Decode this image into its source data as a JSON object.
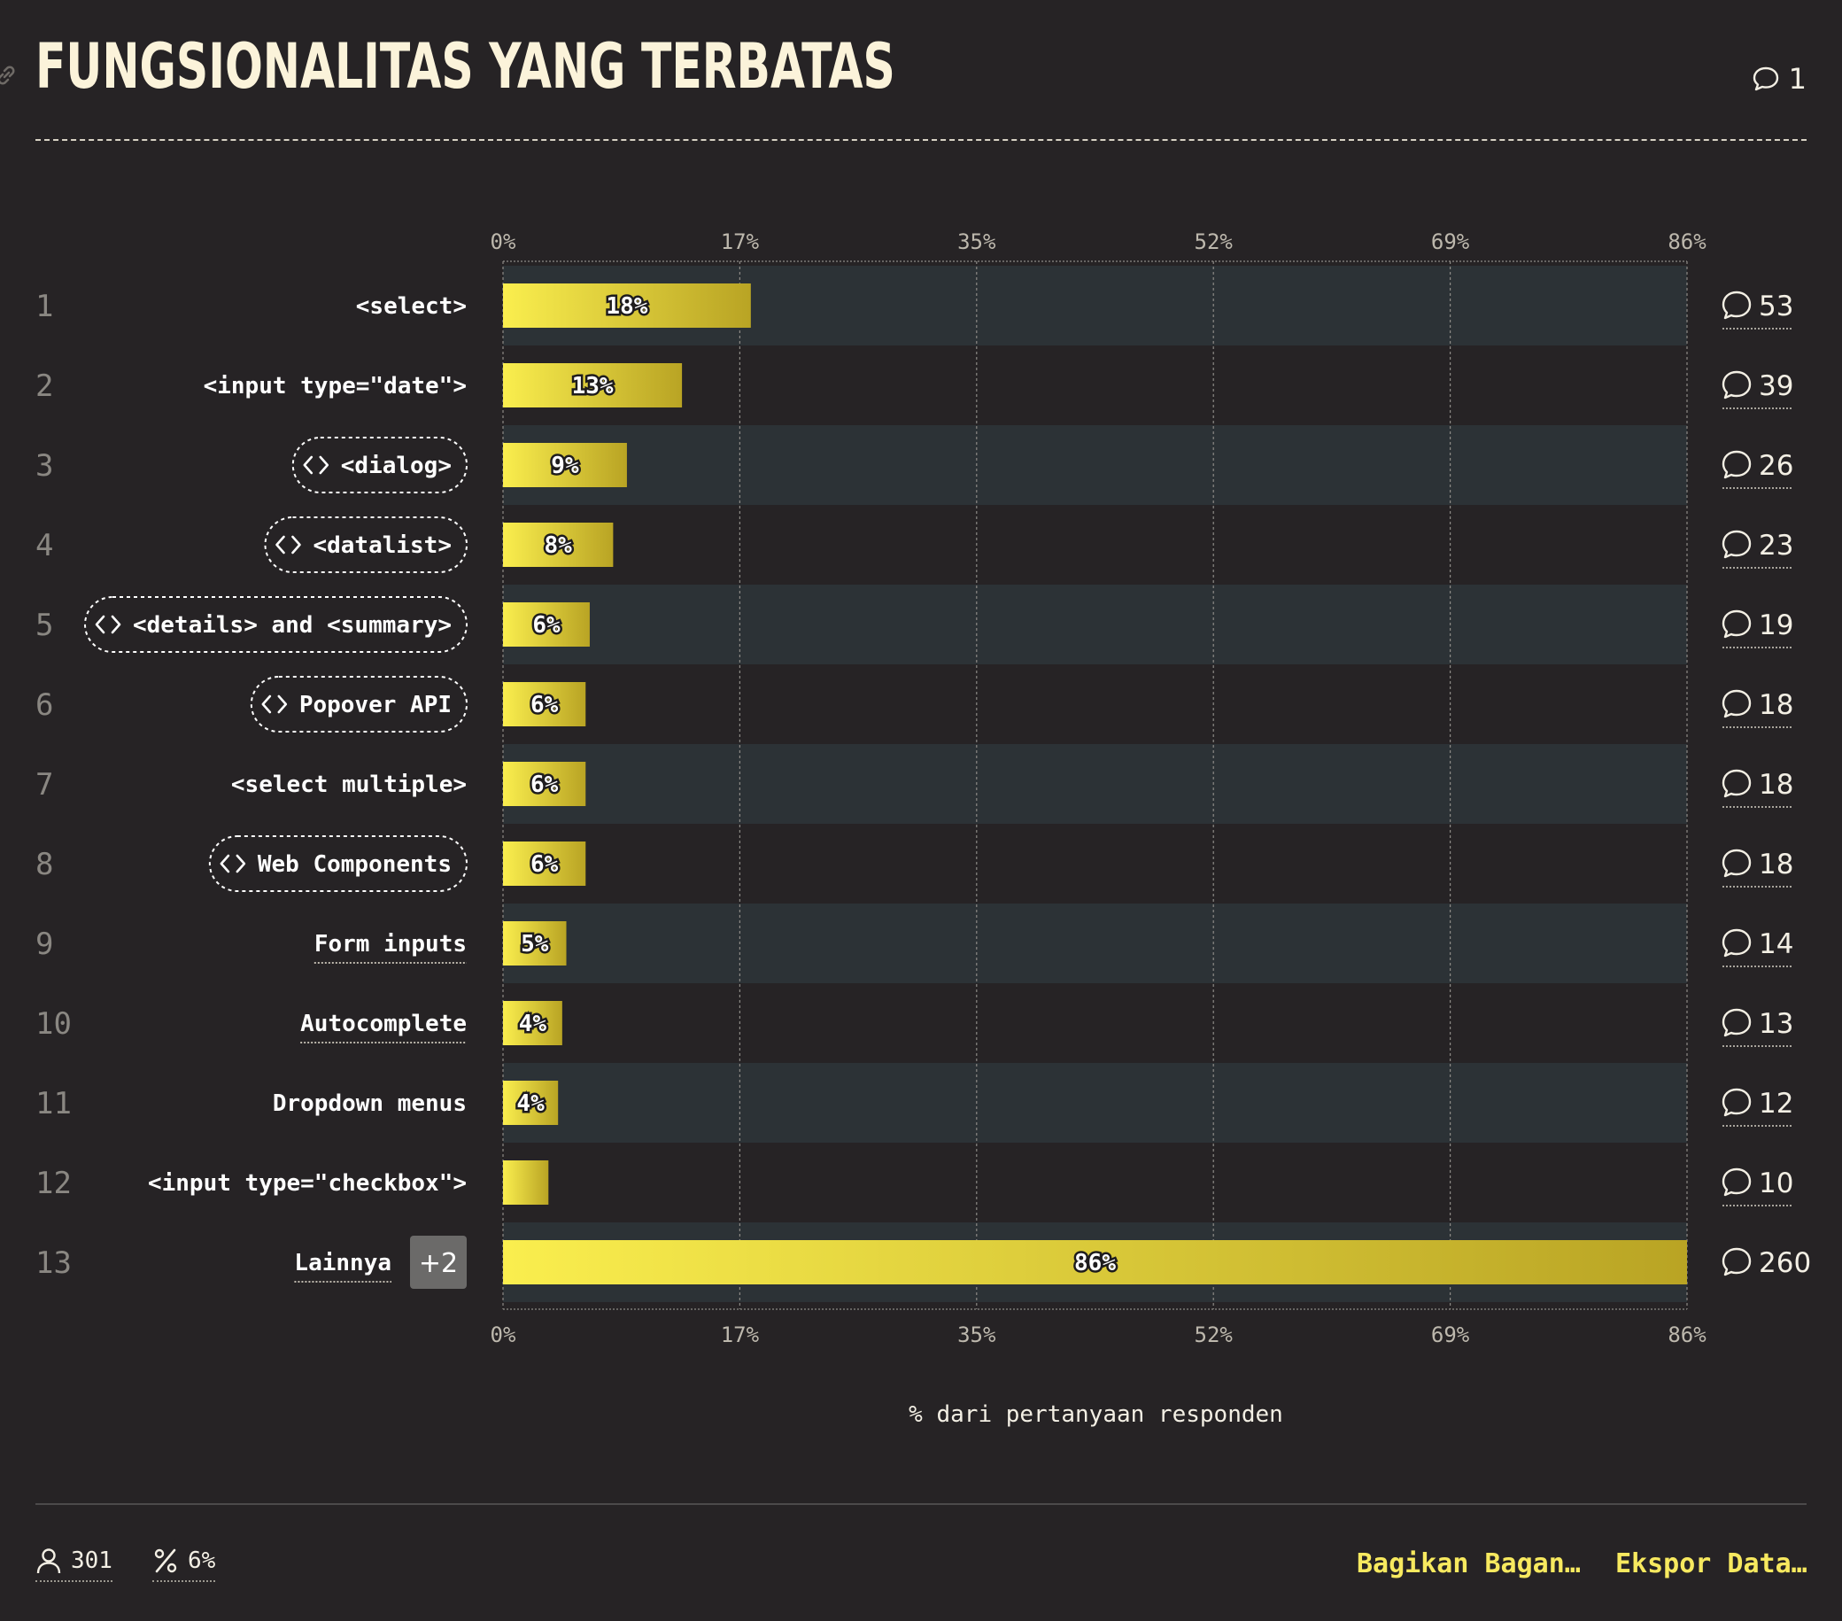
{
  "title": "FUNGSIONALITAS YANG TERBATAS",
  "title_comment_count": "1",
  "chart_data": {
    "type": "bar",
    "orientation": "horizontal",
    "xlabel": "% dari pertanyaan responden",
    "xlim": [
      0,
      86
    ],
    "xticks": [
      "0%",
      "17%",
      "35%",
      "52%",
      "69%",
      "86%"
    ],
    "grid": true,
    "rows": [
      {
        "rank": "1",
        "label": "<select>",
        "value": 18,
        "value_label": "18%",
        "comments": "53",
        "tag": false,
        "underline": false
      },
      {
        "rank": "2",
        "label": "<input type=\"date\">",
        "value": 13,
        "value_label": "13%",
        "comments": "39",
        "tag": false,
        "underline": false
      },
      {
        "rank": "3",
        "label": "<dialog>",
        "value": 9,
        "value_label": "9%",
        "comments": "26",
        "tag": true,
        "underline": false
      },
      {
        "rank": "4",
        "label": "<datalist>",
        "value": 8,
        "value_label": "8%",
        "comments": "23",
        "tag": true,
        "underline": false
      },
      {
        "rank": "5",
        "label": "<details> and <summary>",
        "value": 6.3,
        "value_label": "6%",
        "comments": "19",
        "tag": true,
        "underline": false
      },
      {
        "rank": "6",
        "label": "Popover API",
        "value": 6,
        "value_label": "6%",
        "comments": "18",
        "tag": true,
        "underline": false
      },
      {
        "rank": "7",
        "label": "<select multiple>",
        "value": 6,
        "value_label": "6%",
        "comments": "18",
        "tag": false,
        "underline": false
      },
      {
        "rank": "8",
        "label": "Web Components",
        "value": 6,
        "value_label": "6%",
        "comments": "18",
        "tag": true,
        "underline": false
      },
      {
        "rank": "9",
        "label": "Form inputs",
        "value": 4.6,
        "value_label": "5%",
        "comments": "14",
        "tag": false,
        "underline": true
      },
      {
        "rank": "10",
        "label": "Autocomplete",
        "value": 4.3,
        "value_label": "4%",
        "comments": "13",
        "tag": false,
        "underline": true
      },
      {
        "rank": "11",
        "label": "Dropdown menus",
        "value": 4,
        "value_label": "4%",
        "comments": "12",
        "tag": false,
        "underline": false
      },
      {
        "rank": "12",
        "label": "<input type=\"checkbox\">",
        "value": 3.3,
        "value_label": "",
        "comments": "10",
        "tag": false,
        "underline": false
      },
      {
        "rank": "13",
        "label": "Lainnya",
        "value": 86,
        "value_label": "86%",
        "comments": "260",
        "tag": false,
        "underline": true,
        "extra_badge": "+2"
      }
    ]
  },
  "footer": {
    "respondents": "301",
    "percent": "6%",
    "share_label": "Bagikan Bagan…",
    "export_label": "Ekspor Data…"
  },
  "colors": {
    "background": "#262325",
    "row_band": "#2c3236",
    "bar_start": "#faee4e",
    "bar_end": "#b9a424",
    "accent": "#f7e95f"
  },
  "icons": {
    "comment": "comment-bubble-icon",
    "code": "code-brackets-icon",
    "respondents": "user-icon",
    "percent": "percent-icon",
    "link": "link-icon"
  }
}
